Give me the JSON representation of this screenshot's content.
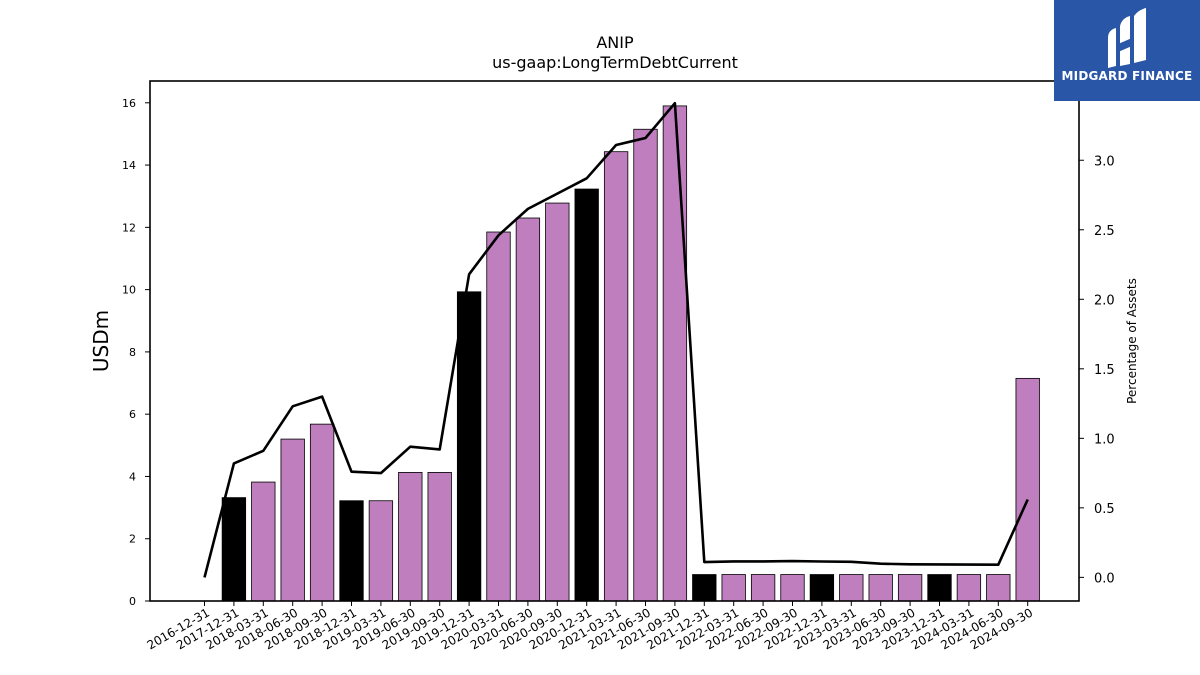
{
  "chart_data": {
    "type": "bar",
    "title": "ANIP",
    "subtitle": "us-gaap:LongTermDebtCurrent",
    "ylabel": "USDm",
    "y2label": "Percentage of Assets",
    "ylim": [
      0,
      16.7
    ],
    "y2lim": [
      -0.17,
      3.57
    ],
    "yticks": [
      0,
      2,
      4,
      6,
      8,
      10,
      12,
      14,
      16
    ],
    "y2ticks": [
      "0.0",
      "0.5",
      "1.0",
      "1.5",
      "2.0",
      "2.5",
      "3.0"
    ],
    "categories": [
      "2016-12-31",
      "2017-12-31",
      "2018-03-31",
      "2018-06-30",
      "2018-09-30",
      "2018-12-31",
      "2019-03-31",
      "2019-06-30",
      "2019-09-30",
      "2019-12-31",
      "2020-03-31",
      "2020-06-30",
      "2020-09-30",
      "2020-12-31",
      "2021-03-31",
      "2021-06-30",
      "2021-09-30",
      "2021-12-31",
      "2022-03-31",
      "2022-06-30",
      "2022-09-30",
      "2022-12-31",
      "2023-03-31",
      "2023-06-30",
      "2023-09-30",
      "2023-12-31",
      "2024-03-31",
      "2024-06-30",
      "2024-09-30"
    ],
    "series": [
      {
        "kind": "bar",
        "values": [
          null,
          3.32,
          3.82,
          5.2,
          5.68,
          3.22,
          3.22,
          4.13,
          4.13,
          9.93,
          11.85,
          12.3,
          12.78,
          13.23,
          14.43,
          15.15,
          15.9,
          0.85,
          0.85,
          0.85,
          0.85,
          0.85,
          0.85,
          0.85,
          0.85,
          0.85,
          0.85,
          0.85,
          7.15
        ],
        "annual": [
          false,
          true,
          false,
          false,
          false,
          true,
          false,
          false,
          false,
          true,
          false,
          false,
          false,
          true,
          false,
          false,
          false,
          true,
          false,
          false,
          false,
          true,
          false,
          false,
          false,
          true,
          false,
          false,
          false
        ]
      },
      {
        "kind": "line",
        "axis": "right",
        "values": [
          0.0,
          0.82,
          0.91,
          1.23,
          1.3,
          0.76,
          0.75,
          0.94,
          0.92,
          2.18,
          2.46,
          2.65,
          2.76,
          2.87,
          3.11,
          3.16,
          3.41,
          0.11,
          0.115,
          0.115,
          0.117,
          0.114,
          0.112,
          0.098,
          0.094,
          0.093,
          0.092,
          0.091,
          0.56
        ]
      }
    ],
    "colors": {
      "quarter_bar": "#bf7fbf",
      "annual_bar": "#000000",
      "line": "#000000"
    }
  },
  "logo": {
    "text": "MIDGARD FINANCE",
    "bg": "#2a56a8"
  }
}
